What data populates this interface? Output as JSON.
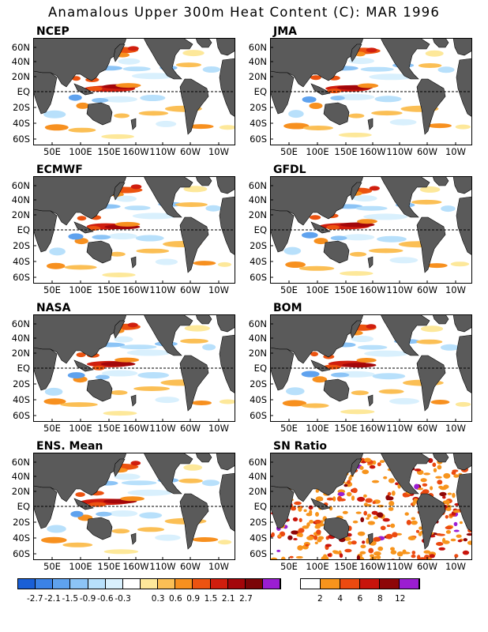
{
  "title": "Anamalous Upper 300m Heat Content (C): MAR 1996",
  "axes": {
    "lat_ticks": [
      "60N",
      "40N",
      "20N",
      "EQ",
      "20S",
      "40S",
      "60S"
    ],
    "lon_ticks": [
      "50E",
      "100E",
      "150E",
      "160W",
      "110W",
      "60W",
      "10W"
    ]
  },
  "colors": {
    "land": "#5a5a5a",
    "ocean": "#ffffff",
    "equator_line": "#000000"
  },
  "chart_data": [
    {
      "type": "heatmap",
      "title": "NCEP",
      "variable": "heat content anomaly (C)",
      "xlim": [
        "20E",
        "20E"
      ],
      "ylim": [
        "65S",
        "65N"
      ],
      "colorbar": "anomaly"
    },
    {
      "type": "heatmap",
      "title": "JMA",
      "variable": "heat content anomaly (C)",
      "xlim": [
        "20E",
        "20E"
      ],
      "ylim": [
        "65S",
        "65N"
      ],
      "colorbar": "anomaly"
    },
    {
      "type": "heatmap",
      "title": "ECMWF",
      "variable": "heat content anomaly (C)",
      "xlim": [
        "20E",
        "20E"
      ],
      "ylim": [
        "65S",
        "65N"
      ],
      "colorbar": "anomaly"
    },
    {
      "type": "heatmap",
      "title": "GFDL",
      "variable": "heat content anomaly (C)",
      "xlim": [
        "20E",
        "20E"
      ],
      "ylim": [
        "65S",
        "65N"
      ],
      "colorbar": "anomaly"
    },
    {
      "type": "heatmap",
      "title": "NASA",
      "variable": "heat content anomaly (C)",
      "xlim": [
        "20E",
        "20E"
      ],
      "ylim": [
        "65S",
        "65N"
      ],
      "colorbar": "anomaly"
    },
    {
      "type": "heatmap",
      "title": "BOM",
      "variable": "heat content anomaly (C)",
      "xlim": [
        "20E",
        "20E"
      ],
      "ylim": [
        "65S",
        "65N"
      ],
      "colorbar": "anomaly"
    },
    {
      "type": "heatmap",
      "title": "ENS. Mean",
      "variable": "heat content anomaly (C)",
      "xlim": [
        "20E",
        "20E"
      ],
      "ylim": [
        "65S",
        "65N"
      ],
      "colorbar": "anomaly"
    },
    {
      "type": "heatmap",
      "title": "SN Ratio",
      "variable": "signal-to-noise ratio",
      "xlim": [
        "20E",
        "20E"
      ],
      "ylim": [
        "65S",
        "65N"
      ],
      "colorbar": "snr"
    }
  ],
  "colorbars": {
    "anomaly": {
      "colors": [
        "#1a5fd6",
        "#3b82e6",
        "#5fa2ee",
        "#8cc4f6",
        "#b8e0fb",
        "#d9f0fd",
        "#ffffff",
        "#fde89a",
        "#fbbf55",
        "#f7901f",
        "#ec5310",
        "#d01e0e",
        "#a3060a",
        "#7b0508",
        "#9b1dd2"
      ],
      "labels": [
        "-2.7",
        "-2.1",
        "-1.5",
        "-0.9",
        "-0.6",
        "-0.3",
        "0.3",
        "0.6",
        "0.9",
        "1.5",
        "2.1",
        "2.7"
      ]
    },
    "snr": {
      "colors": [
        "#ffffff",
        "#f7941c",
        "#ec4a10",
        "#c8140c",
        "#8e0608",
        "#9b1dd2"
      ],
      "labels": [
        "2",
        "4",
        "6",
        "8",
        "12"
      ]
    }
  }
}
